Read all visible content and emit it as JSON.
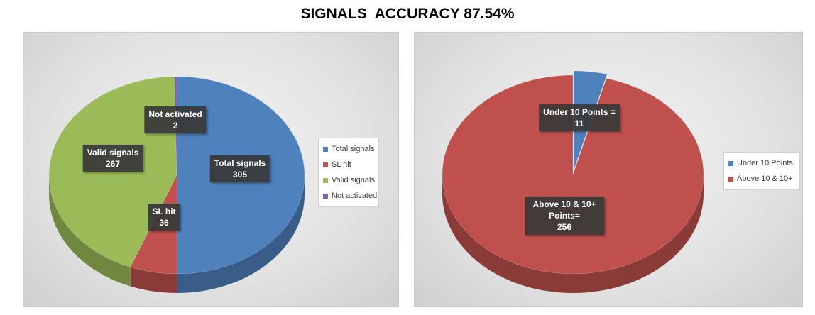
{
  "title": "SIGNALS  ACCURACY 87.54%",
  "chart_data": [
    {
      "type": "pie",
      "categories": [
        "Total signals",
        "SL hit",
        "Valid signals",
        "Not activated"
      ],
      "values": [
        305,
        36,
        267,
        2
      ],
      "colors": [
        "#4f81bd",
        "#c0504d",
        "#9bbb59",
        "#8064a2"
      ],
      "legend": "right"
    },
    {
      "type": "pie",
      "categories": [
        "Under 10 Points",
        "Above 10 & 10+"
      ],
      "values": [
        11,
        256
      ],
      "label_names": [
        "Under 10 Points =",
        "Above 10 & 10+ Points="
      ],
      "colors": [
        "#4f81bd",
        "#c0504d"
      ],
      "legend": "right"
    }
  ]
}
